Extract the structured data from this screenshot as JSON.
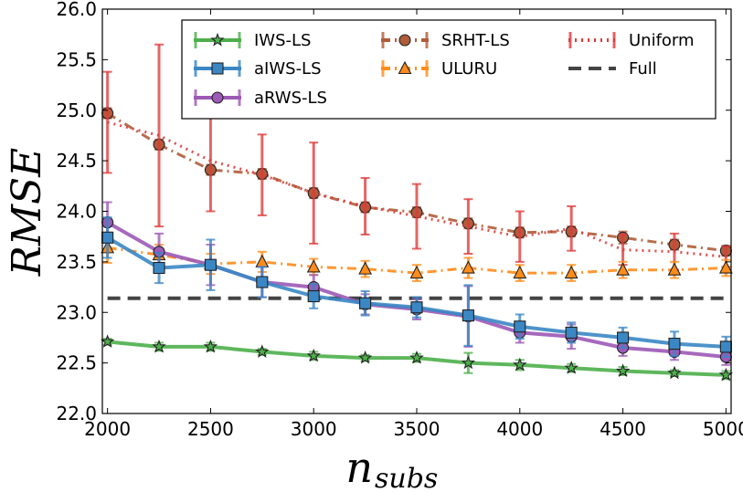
{
  "chart_data": {
    "type": "line",
    "xlabel": "n",
    "xlabel_sub": "subs",
    "ylabel": "RMSE",
    "xlim": [
      1975,
      5025
    ],
    "ylim": [
      22.0,
      26.0
    ],
    "xticks": [
      2000,
      2500,
      3000,
      3500,
      4000,
      4500,
      5000
    ],
    "yticks": [
      "22.0",
      "22.5",
      "23.0",
      "23.5",
      "24.0",
      "24.5",
      "25.0",
      "25.5",
      "26.0"
    ],
    "legend_position": "top-right",
    "x": [
      2000,
      2250,
      2500,
      2750,
      3000,
      3250,
      3500,
      3750,
      4000,
      4250,
      4500,
      4750,
      5000
    ],
    "full_value": 23.14,
    "series": [
      {
        "name": "IWS-LS",
        "color": "#4daf4a",
        "marker": "star",
        "style": "solid",
        "values": [
          22.71,
          22.66,
          22.66,
          22.61,
          22.57,
          22.55,
          22.55,
          22.5,
          22.48,
          22.45,
          22.42,
          22.4,
          22.38
        ],
        "errors": [
          0.03,
          0.04,
          0.04,
          0.03,
          0.04,
          0.03,
          0.04,
          0.1,
          0.05,
          0.04,
          0.04,
          0.03,
          0.04
        ]
      },
      {
        "name": "aIWS-LS",
        "color": "#3a87c4",
        "marker": "square",
        "style": "solid",
        "values": [
          23.74,
          23.44,
          23.47,
          23.3,
          23.16,
          23.09,
          23.05,
          22.97,
          22.86,
          22.8,
          22.75,
          22.69,
          22.66
        ],
        "errors": [
          0.2,
          0.15,
          0.25,
          0.15,
          0.12,
          0.12,
          0.1,
          0.3,
          0.12,
          0.1,
          0.1,
          0.12,
          0.1
        ]
      },
      {
        "name": "aRWS-LS",
        "color": "#9c59b6",
        "marker": "circle",
        "style": "solid",
        "values": [
          23.89,
          23.6,
          23.47,
          23.3,
          23.25,
          23.08,
          23.03,
          22.96,
          22.8,
          22.76,
          22.65,
          22.61,
          22.56
        ],
        "errors": [
          0.2,
          0.18,
          0.2,
          0.15,
          0.12,
          0.1,
          0.1,
          0.3,
          0.1,
          0.12,
          0.08,
          0.08,
          0.08
        ]
      },
      {
        "name": "SRHT-LS",
        "color": "#b05c3a",
        "marker": "circle",
        "style": "dashdot",
        "values": [
          24.97,
          24.66,
          24.41,
          24.37,
          24.18,
          24.04,
          23.99,
          23.88,
          23.79,
          23.8,
          23.74,
          23.67,
          23.61
        ],
        "errors": [
          0.05,
          0.05,
          0.05,
          0.05,
          0.05,
          0.05,
          0.05,
          0.05,
          0.05,
          0.05,
          0.06,
          0.05,
          0.05
        ]
      },
      {
        "name": "ULURU",
        "color": "#ff8c1a",
        "marker": "triangle",
        "style": "dashdot",
        "values": [
          23.64,
          23.57,
          23.48,
          23.5,
          23.45,
          23.43,
          23.39,
          23.44,
          23.39,
          23.39,
          23.42,
          23.42,
          23.44
        ],
        "errors": [
          0.15,
          0.1,
          0.1,
          0.1,
          0.08,
          0.08,
          0.08,
          0.1,
          0.08,
          0.08,
          0.08,
          0.08,
          0.08
        ]
      },
      {
        "name": "Uniform",
        "color": "#e03a3a",
        "marker": "none",
        "style": "dotted",
        "values": [
          24.88,
          24.75,
          24.5,
          24.36,
          24.18,
          24.05,
          23.95,
          23.85,
          23.75,
          23.83,
          23.62,
          23.6,
          23.55
        ],
        "errors": [
          0.5,
          0.9,
          0.5,
          0.4,
          0.5,
          0.28,
          0.32,
          0.27,
          0.25,
          0.22,
          0.15,
          0.18,
          0.1
        ]
      },
      {
        "name": "Full",
        "color": "#444444",
        "marker": "none",
        "style": "dashed"
      }
    ]
  }
}
